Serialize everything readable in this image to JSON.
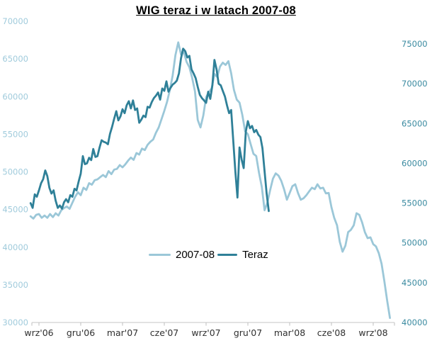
{
  "title": "WIG teraz i w latach 2007-08",
  "legend": {
    "items": [
      {
        "label": "2007-08",
        "color": "#9bc7d8",
        "swatch_width": 31
      },
      {
        "label": "Teraz",
        "color": "#2f8098",
        "swatch_width": 28
      }
    ]
  },
  "colors": {
    "light_series": "#9bc7d8",
    "dark_series": "#2f8098",
    "left_axis_labels": "#a0cbdc",
    "right_axis_labels": "#3a8aa0",
    "axis_line": "#c6c6c6",
    "tick_marks": "#bfbfbf",
    "x_axis_labels": "#303030",
    "title": "#000000"
  },
  "chart_data": {
    "type": "line",
    "title": "WIG teraz i w latach 2007-08",
    "grid": false,
    "legend_position": "inside-bottom-center",
    "x_unit": "months since wrz'06",
    "x_ticks": [
      {
        "label": "wrz'06",
        "month": 0
      },
      {
        "label": "gru'06",
        "month": 3
      },
      {
        "label": "mar'07",
        "month": 6
      },
      {
        "label": "cze'07",
        "month": 9
      },
      {
        "label": "wrz'07",
        "month": 12
      },
      {
        "label": "gru'07",
        "month": 15
      },
      {
        "label": "mar'08",
        "month": 18
      },
      {
        "label": "cze'08",
        "month": 21
      },
      {
        "label": "wrz'08",
        "month": 24
      }
    ],
    "left_axis": {
      "min": 30000,
      "max": 70000,
      "tick_step": 5000,
      "ticks": [
        70000,
        65000,
        60000,
        55000,
        50000,
        45000,
        40000,
        35000,
        30000
      ]
    },
    "right_axis": {
      "min": 40000,
      "scale_max": 77850,
      "tick_step": 5000,
      "ticks": [
        75000,
        70000,
        65000,
        60000,
        55000,
        50000,
        45000,
        40000
      ]
    },
    "series": [
      {
        "name": "2007-08",
        "axis": "left",
        "x_start": -0.6,
        "x_step": 0.2,
        "values": [
          44100,
          43800,
          44300,
          44400,
          43900,
          44200,
          43900,
          44400,
          44000,
          44500,
          44200,
          44900,
          45200,
          45400,
          45100,
          45900,
          46700,
          47300,
          46900,
          47900,
          47600,
          48500,
          48300,
          48900,
          49000,
          49300,
          49600,
          49300,
          50100,
          49700,
          50300,
          50400,
          50900,
          50600,
          51000,
          51500,
          51900,
          51600,
          52500,
          52300,
          53100,
          52900,
          53600,
          54000,
          54300,
          55200,
          55900,
          57000,
          58100,
          59300,
          60900,
          62800,
          65500,
          67200,
          65600,
          65900,
          64600,
          63900,
          62500,
          60700,
          56900,
          55900,
          57500,
          59900,
          60600,
          61100,
          63000,
          62600,
          64000,
          64500,
          64200,
          64700,
          63100,
          60900,
          59600,
          59200,
          57600,
          55400,
          55000,
          53700,
          52400,
          52100,
          49900,
          48000,
          44900,
          45900,
          47600,
          49100,
          49800,
          49500,
          48800,
          47700,
          46300,
          47200,
          48100,
          48350,
          47200,
          46300,
          46500,
          46900,
          47400,
          47900,
          47700,
          48350,
          47800,
          47900,
          47150,
          47200,
          45300,
          43900,
          42900,
          40700,
          39400,
          40200,
          42000,
          42300,
          42900,
          44500,
          44300,
          43300,
          42000,
          41200,
          41300,
          40400,
          40100,
          39200,
          37800,
          35500,
          32900,
          30600
        ]
      },
      {
        "name": "Teraz",
        "axis": "right",
        "x_start": -0.6,
        "x_step": 0.15,
        "values": [
          55000,
          54400,
          56100,
          55800,
          56600,
          57500,
          58000,
          59100,
          58400,
          56900,
          56200,
          56600,
          55300,
          54400,
          54700,
          54300,
          55100,
          55500,
          55100,
          56000,
          55800,
          56800,
          56600,
          57700,
          58700,
          60900,
          59900,
          60000,
          60700,
          60400,
          61800,
          60800,
          60900,
          62000,
          62900,
          62700,
          62600,
          62400,
          63700,
          64600,
          65600,
          66550,
          65400,
          65900,
          66800,
          66300,
          67300,
          67800,
          66900,
          67900,
          66700,
          66900,
          65100,
          65500,
          66000,
          65800,
          67100,
          67000,
          67700,
          68200,
          68500,
          68900,
          68000,
          69400,
          69100,
          70300,
          69000,
          69500,
          69900,
          70100,
          70400,
          71300,
          73200,
          74400,
          74100,
          73300,
          73500,
          71800,
          71300,
          70700,
          69600,
          68600,
          68200,
          67900,
          67600,
          69000,
          68100,
          69800,
          73000,
          71800,
          70000,
          69800,
          69100,
          68400,
          67300,
          66300,
          66700,
          62800,
          59000,
          55700,
          62000,
          60500,
          59400,
          64000,
          65300,
          64400,
          64700,
          63900,
          64200,
          63600,
          63300,
          61900,
          59000,
          56200,
          54000
        ]
      }
    ]
  }
}
